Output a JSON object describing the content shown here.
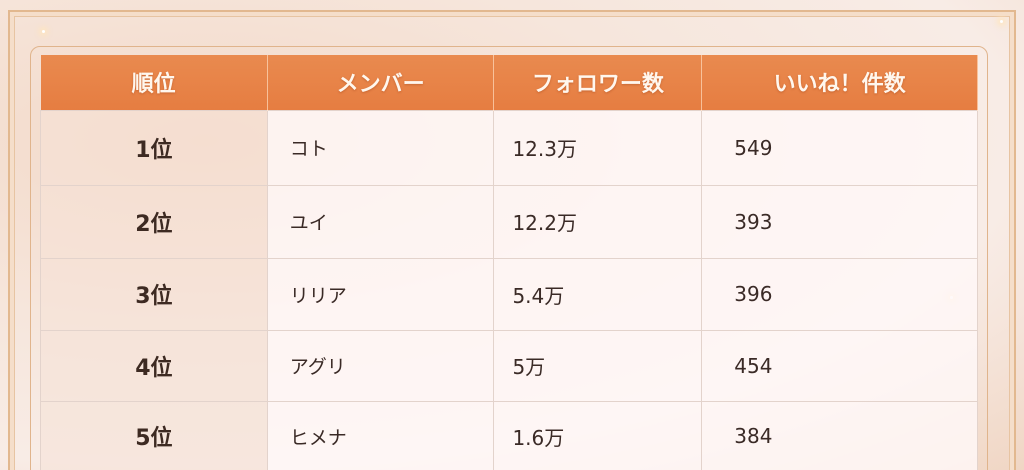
{
  "table": {
    "headers": [
      "順位",
      "メンバー",
      "フォロワー数",
      "いいね！件数"
    ],
    "rows": [
      {
        "rank": "1位",
        "member": "コト",
        "followers": "12.3万",
        "likes": "549"
      },
      {
        "rank": "2位",
        "member": "ユイ",
        "followers": "12.2万",
        "likes": "393"
      },
      {
        "rank": "3位",
        "member": "リリア",
        "followers": "5.4万",
        "likes": "396"
      },
      {
        "rank": "4位",
        "member": "アグリ",
        "followers": "5万",
        "likes": "454"
      },
      {
        "rank": "5位",
        "member": "ヒメナ",
        "followers": "1.6万",
        "likes": "384"
      }
    ]
  },
  "colors": {
    "header": "#e67d41",
    "frame": "#e2b88f"
  }
}
